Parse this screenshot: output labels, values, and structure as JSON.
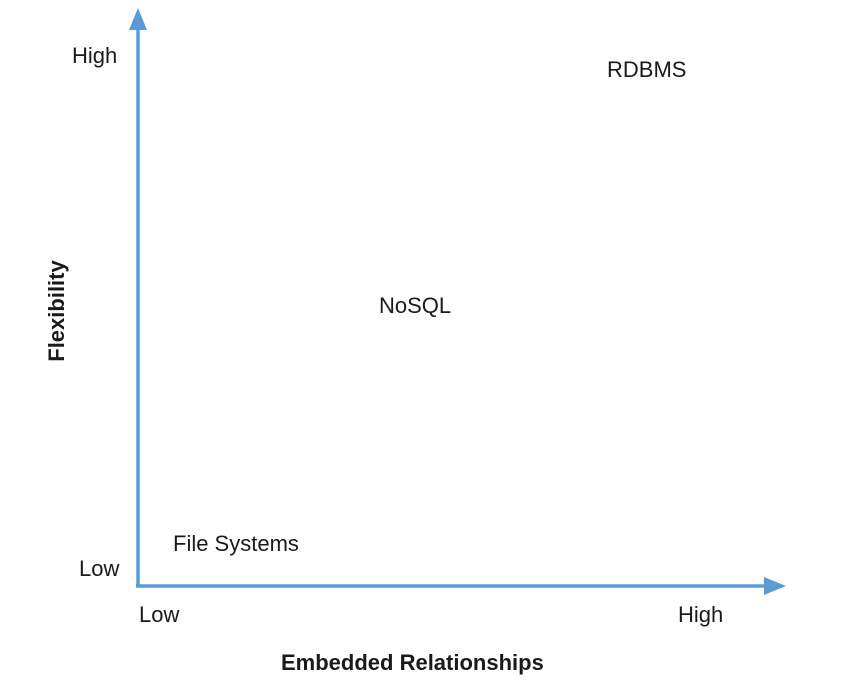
{
  "diagram": {
    "x_axis": {
      "title": "Embedded Relationships",
      "low_label": "Low",
      "high_label": "High"
    },
    "y_axis": {
      "title": "Flexibility",
      "low_label": "Low",
      "high_label": "High"
    },
    "items": [
      {
        "label": "RDBMS"
      },
      {
        "label": "NoSQL"
      },
      {
        "label": "File Systems"
      }
    ],
    "axis_color": "#5b9bd5"
  }
}
